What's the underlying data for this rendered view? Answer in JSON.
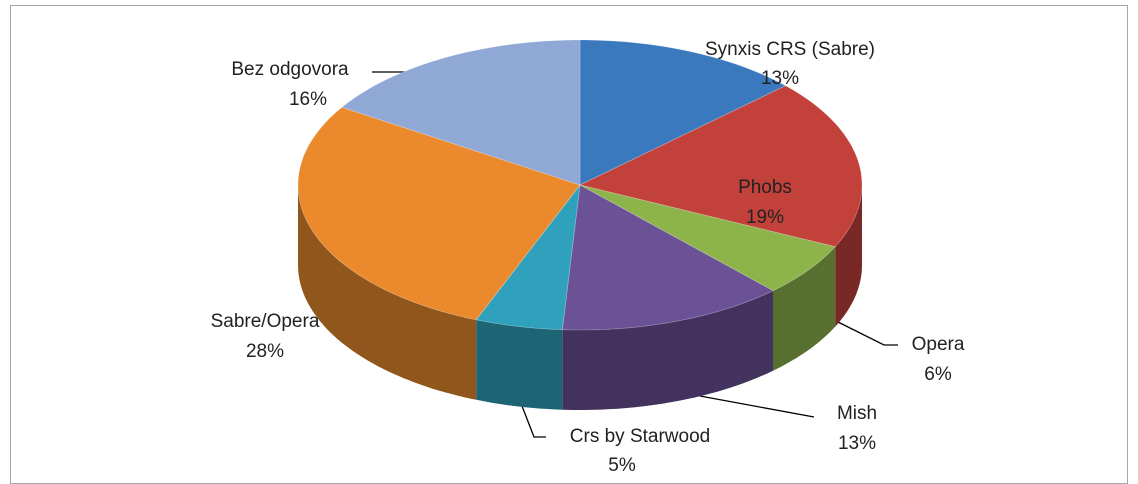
{
  "chart_data": {
    "type": "pie3d",
    "categories": [
      "Synxis CRS (Sabre)",
      "Phobs",
      "Opera",
      "Mish",
      "Crs by Starwood",
      "Sabre/Opera",
      "Bez odgovora"
    ],
    "values": [
      13,
      19,
      6,
      13,
      5,
      28,
      16
    ],
    "value_labels": [
      "13%",
      "19%",
      "6%",
      "13%",
      "5%",
      "28%",
      "16%"
    ],
    "colors": [
      "#3b79be",
      "#c2413b",
      "#8db34b",
      "#6b5196",
      "#2fa1bc",
      "#ea8a2c",
      "#8fa8d5"
    ]
  }
}
